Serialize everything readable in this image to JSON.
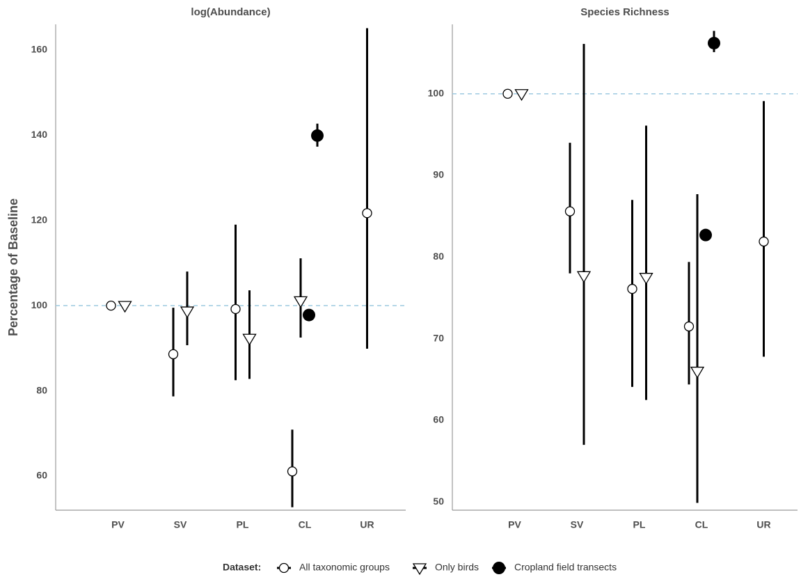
{
  "legend": {
    "title": "Dataset:",
    "series": [
      {
        "name": "All taxonomic groups",
        "marker": "open-circle"
      },
      {
        "name": "Only birds",
        "marker": "open-triangle-down"
      },
      {
        "name": "Cropland field transects",
        "marker": "filled-circle"
      }
    ]
  },
  "chart_data": [
    {
      "type": "pointrange",
      "title": "log(Abundance)",
      "ylabel": "Percentage of Baseline",
      "categories": [
        "PV",
        "SV",
        "PL",
        "CL",
        "UR"
      ],
      "ylim": [
        52,
        166
      ],
      "yticks": [
        60,
        80,
        100,
        120,
        140,
        160
      ],
      "reference_line": 100,
      "series": [
        {
          "points": [
            {
              "category": "PV",
              "value": 100,
              "low": null,
              "high": null
            },
            {
              "category": "SV",
              "value": 88.6,
              "low": 78.7,
              "high": 99.5
            },
            {
              "category": "PL",
              "value": 99.2,
              "low": 82.5,
              "high": 119.0
            },
            {
              "category": "CL",
              "value": 61.1,
              "low": 52.7,
              "high": 70.9
            },
            {
              "category": "UR",
              "value": 121.7,
              "low": 89.9,
              "high": 165.1
            }
          ]
        },
        {
          "points": [
            {
              "category": "PV",
              "value": 100,
              "low": null,
              "high": null
            },
            {
              "category": "SV",
              "value": 98.7,
              "low": 90.7,
              "high": 108.0
            },
            {
              "category": "PL",
              "value": 92.3,
              "low": 82.8,
              "high": 103.6
            },
            {
              "category": "CL",
              "value": 101.1,
              "low": 92.5,
              "high": 111.1
            }
          ]
        },
        {
          "points": [
            {
              "category": "CL",
              "value": 97.8,
              "low": null,
              "high": null
            },
            {
              "category": "CL",
              "value": 139.9,
              "low": 137.3,
              "high": 142.7
            }
          ]
        }
      ]
    },
    {
      "type": "pointrange",
      "title": "Species Richness",
      "categories": [
        "PV",
        "SV",
        "PL",
        "CL",
        "UR"
      ],
      "ylim": [
        49,
        108.5
      ],
      "yticks": [
        50,
        60,
        70,
        80,
        90,
        100
      ],
      "reference_line": 100,
      "series": [
        {
          "points": [
            {
              "category": "PV",
              "value": 100,
              "low": null,
              "high": null
            },
            {
              "category": "SV",
              "value": 85.6,
              "low": 78.0,
              "high": 94.0
            },
            {
              "category": "PL",
              "value": 76.1,
              "low": 64.1,
              "high": 87.0
            },
            {
              "category": "CL",
              "value": 71.5,
              "low": 64.4,
              "high": 79.4
            },
            {
              "category": "UR",
              "value": 81.9,
              "low": 67.8,
              "high": 99.1
            }
          ]
        },
        {
          "points": [
            {
              "category": "PV",
              "value": 100,
              "low": null,
              "high": null
            },
            {
              "category": "SV",
              "value": 77.7,
              "low": 57.0,
              "high": 106.1
            },
            {
              "category": "PL",
              "value": 77.5,
              "low": 62.5,
              "high": 96.1
            },
            {
              "category": "CL",
              "value": 66.0,
              "low": 49.9,
              "high": 87.7
            }
          ]
        },
        {
          "points": [
            {
              "category": "CL",
              "value": 82.7,
              "low": null,
              "high": null
            },
            {
              "category": "CL",
              "value": 106.2,
              "low": 105.1,
              "high": 107.7
            }
          ]
        }
      ]
    }
  ]
}
